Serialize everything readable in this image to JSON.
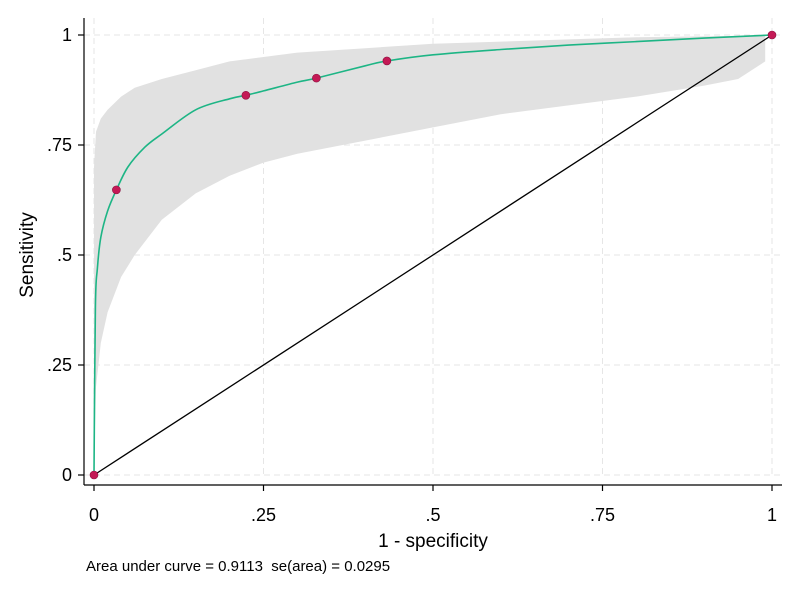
{
  "chart_data": {
    "type": "line",
    "xlabel": "1 - specificity",
    "ylabel": "Sensitivity",
    "xlim": [
      0,
      1
    ],
    "ylim": [
      0,
      1
    ],
    "xticks": [
      {
        "value": 0,
        "label": "0"
      },
      {
        "value": 0.25,
        "label": ".25"
      },
      {
        "value": 0.5,
        "label": ".5"
      },
      {
        "value": 0.75,
        "label": ".75"
      },
      {
        "value": 1,
        "label": "1"
      }
    ],
    "yticks": [
      {
        "value": 0,
        "label": "0"
      },
      {
        "value": 0.25,
        "label": ".25"
      },
      {
        "value": 0.5,
        "label": ".5"
      },
      {
        "value": 0.75,
        "label": ".75"
      },
      {
        "value": 1,
        "label": "1"
      }
    ],
    "grid": true,
    "legend": "none",
    "note": "Area under curve = 0.9113  se(area) = 0.0295",
    "observed_points": {
      "x": [
        0,
        0.033,
        0.224,
        0.328,
        0.432,
        1
      ],
      "y": [
        0,
        0.648,
        0.863,
        0.902,
        0.941,
        1
      ]
    },
    "fitted_curve": {
      "x": [
        0,
        0.002,
        0.005,
        0.01,
        0.02,
        0.033,
        0.05,
        0.075,
        0.1,
        0.15,
        0.2,
        0.224,
        0.25,
        0.3,
        0.328,
        0.4,
        0.432,
        0.5,
        0.6,
        0.7,
        0.8,
        0.9,
        1
      ],
      "y": [
        0,
        0.38,
        0.47,
        0.54,
        0.6,
        0.648,
        0.7,
        0.745,
        0.775,
        0.83,
        0.855,
        0.863,
        0.873,
        0.893,
        0.902,
        0.93,
        0.941,
        0.955,
        0.967,
        0.977,
        0.985,
        0.993,
        1
      ]
    },
    "confidence_band": {
      "x": [
        0,
        0.003,
        0.01,
        0.02,
        0.04,
        0.06,
        0.1,
        0.15,
        0.2,
        0.25,
        0.3,
        0.4,
        0.5,
        0.6,
        0.7,
        0.8,
        0.9,
        0.95,
        0.99
      ],
      "upper": [
        0.7,
        0.78,
        0.81,
        0.83,
        0.86,
        0.88,
        0.9,
        0.92,
        0.94,
        0.95,
        0.96,
        0.97,
        0.98,
        0.985,
        0.99,
        0.995,
        0.997,
        0.998,
        0.999
      ],
      "lower": [
        0.02,
        0.2,
        0.3,
        0.37,
        0.45,
        0.5,
        0.58,
        0.64,
        0.68,
        0.71,
        0.73,
        0.76,
        0.79,
        0.82,
        0.84,
        0.86,
        0.885,
        0.9,
        0.94
      ]
    },
    "reference_line": {
      "x": [
        0,
        1
      ],
      "y": [
        0,
        1
      ]
    },
    "colors": {
      "curve": "#1db585",
      "points": "#c41a56",
      "band": "#e1e1e1",
      "reference": "#000000",
      "grid": "#e6e6e6"
    }
  }
}
